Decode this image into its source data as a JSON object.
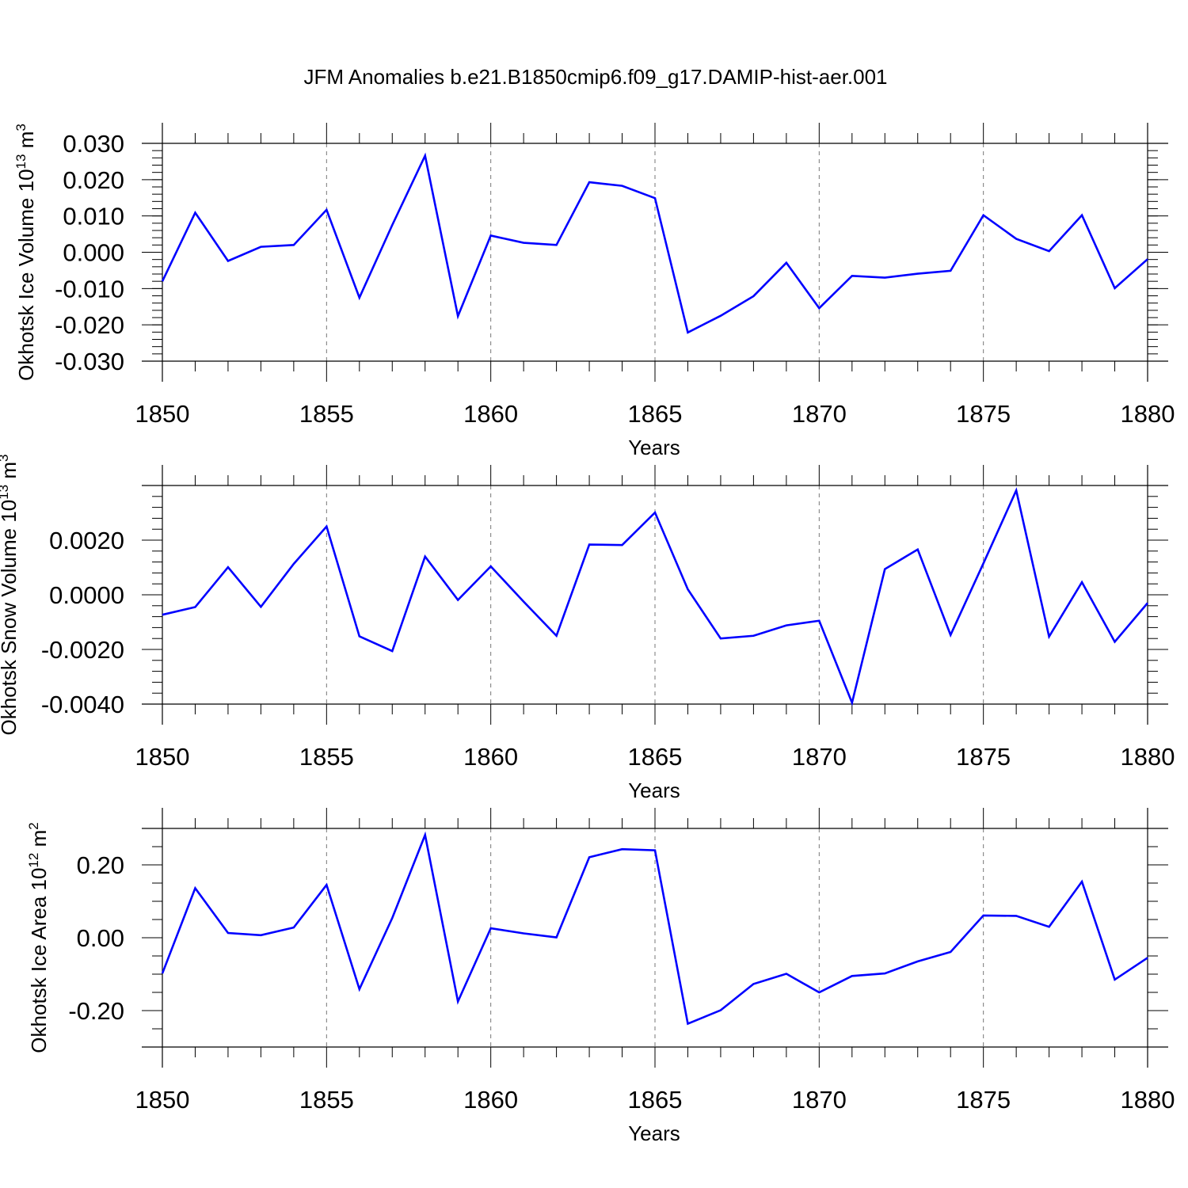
{
  "title": "JFM Anomalies b.e21.B1850cmip6.f09_g17.DAMIP-hist-aer.001",
  "colors": {
    "line": "#0000ff",
    "axis": "#000000",
    "grid": "#777777"
  },
  "chart_data": [
    {
      "type": "line",
      "ylabel": {
        "text": "Okhotsk Ice Volume 10",
        "sup1": "13",
        "mid": " m",
        "sup2": "3"
      },
      "xlabel": "Years",
      "xlim": [
        1850,
        1880
      ],
      "ylim": [
        -0.03,
        0.03
      ],
      "x_ticks": [
        "1850",
        "1855",
        "1860",
        "1865",
        "1870",
        "1875",
        "1880"
      ],
      "y_ticks": [
        {
          "value": 0.03,
          "label": "0.030"
        },
        {
          "value": 0.02,
          "label": "0.020"
        },
        {
          "value": 0.01,
          "label": "0.010"
        },
        {
          "value": 0.0,
          "label": "0.000"
        },
        {
          "value": -0.01,
          "label": "-0.010"
        },
        {
          "value": -0.02,
          "label": "-0.020"
        },
        {
          "value": -0.03,
          "label": "-0.030"
        }
      ],
      "y_minor_step": 0.002,
      "x": [
        1850,
        1851,
        1852,
        1853,
        1854,
        1855,
        1856,
        1857,
        1858,
        1859,
        1860,
        1861,
        1862,
        1863,
        1864,
        1865,
        1866,
        1867,
        1868,
        1869,
        1870,
        1871,
        1872,
        1873,
        1874,
        1875,
        1876,
        1877,
        1878,
        1879,
        1880
      ],
      "values": [
        -0.008,
        0.0109,
        -0.0024,
        0.0015,
        0.002,
        0.0117,
        -0.0125,
        0.0075,
        0.0266,
        -0.0176,
        0.0046,
        0.0026,
        0.002,
        0.0193,
        0.0183,
        0.0149,
        -0.0221,
        -0.0175,
        -0.0121,
        -0.0029,
        -0.0154,
        -0.0065,
        -0.007,
        -0.0059,
        -0.0051,
        0.0102,
        0.0037,
        0.0003,
        0.0102,
        -0.0099,
        -0.0019
      ]
    },
    {
      "type": "line",
      "ylabel": {
        "text": "Okhotsk Snow Volume 10",
        "sup1": "13",
        "mid": " m",
        "sup2": "3"
      },
      "xlabel": "Years",
      "xlim": [
        1850,
        1880
      ],
      "ylim": [
        -0.004,
        0.004
      ],
      "x_ticks": [
        "1850",
        "1855",
        "1860",
        "1865",
        "1870",
        "1875",
        "1880"
      ],
      "y_ticks": [
        {
          "value": 0.002,
          "label": "0.0020"
        },
        {
          "value": 0.0,
          "label": "0.0000"
        },
        {
          "value": -0.002,
          "label": "-0.0020"
        },
        {
          "value": -0.004,
          "label": "-0.0040"
        }
      ],
      "y_minor_step": 0.0004,
      "x": [
        1850,
        1851,
        1852,
        1853,
        1854,
        1855,
        1856,
        1857,
        1858,
        1859,
        1860,
        1861,
        1862,
        1863,
        1864,
        1865,
        1866,
        1867,
        1868,
        1869,
        1870,
        1871,
        1872,
        1873,
        1874,
        1875,
        1876,
        1877,
        1878,
        1879,
        1880
      ],
      "values": [
        -0.00073,
        -0.00045,
        0.00101,
        -0.00044,
        0.00113,
        0.0025,
        -0.00152,
        -0.00206,
        0.0014,
        -0.00019,
        0.00104,
        -0.00025,
        -0.0015,
        0.00184,
        0.00182,
        0.00301,
        0.0002,
        -0.0016,
        -0.0015,
        -0.00112,
        -0.00095,
        -0.00395,
        0.00094,
        0.00166,
        -0.00147,
        0.00115,
        0.00382,
        -0.00153,
        0.00046,
        -0.00172,
        -0.0003
      ]
    },
    {
      "type": "line",
      "ylabel": {
        "text": "Okhotsk Ice Area 10",
        "sup1": "12",
        "mid": " m",
        "sup2": "2"
      },
      "xlabel": "Years",
      "xlim": [
        1850,
        1880
      ],
      "ylim": [
        -0.3,
        0.3
      ],
      "x_ticks": [
        "1850",
        "1855",
        "1860",
        "1865",
        "1870",
        "1875",
        "1880"
      ],
      "y_ticks": [
        {
          "value": 0.2,
          "label": "0.20"
        },
        {
          "value": 0.0,
          "label": "0.00"
        },
        {
          "value": -0.2,
          "label": "-0.20"
        }
      ],
      "y_minor_step": 0.05,
      "x": [
        1850,
        1851,
        1852,
        1853,
        1854,
        1855,
        1856,
        1857,
        1858,
        1859,
        1860,
        1861,
        1862,
        1863,
        1864,
        1865,
        1866,
        1867,
        1868,
        1869,
        1870,
        1871,
        1872,
        1873,
        1874,
        1875,
        1876,
        1877,
        1878,
        1879,
        1880
      ],
      "values": [
        -0.098,
        0.136,
        0.013,
        0.007,
        0.028,
        0.145,
        -0.141,
        0.054,
        0.282,
        -0.175,
        0.026,
        0.012,
        0.001,
        0.221,
        0.243,
        0.24,
        -0.236,
        -0.199,
        -0.127,
        -0.099,
        -0.15,
        -0.105,
        -0.098,
        -0.065,
        -0.039,
        0.061,
        0.06,
        0.03,
        0.154,
        -0.115,
        -0.055
      ]
    }
  ]
}
